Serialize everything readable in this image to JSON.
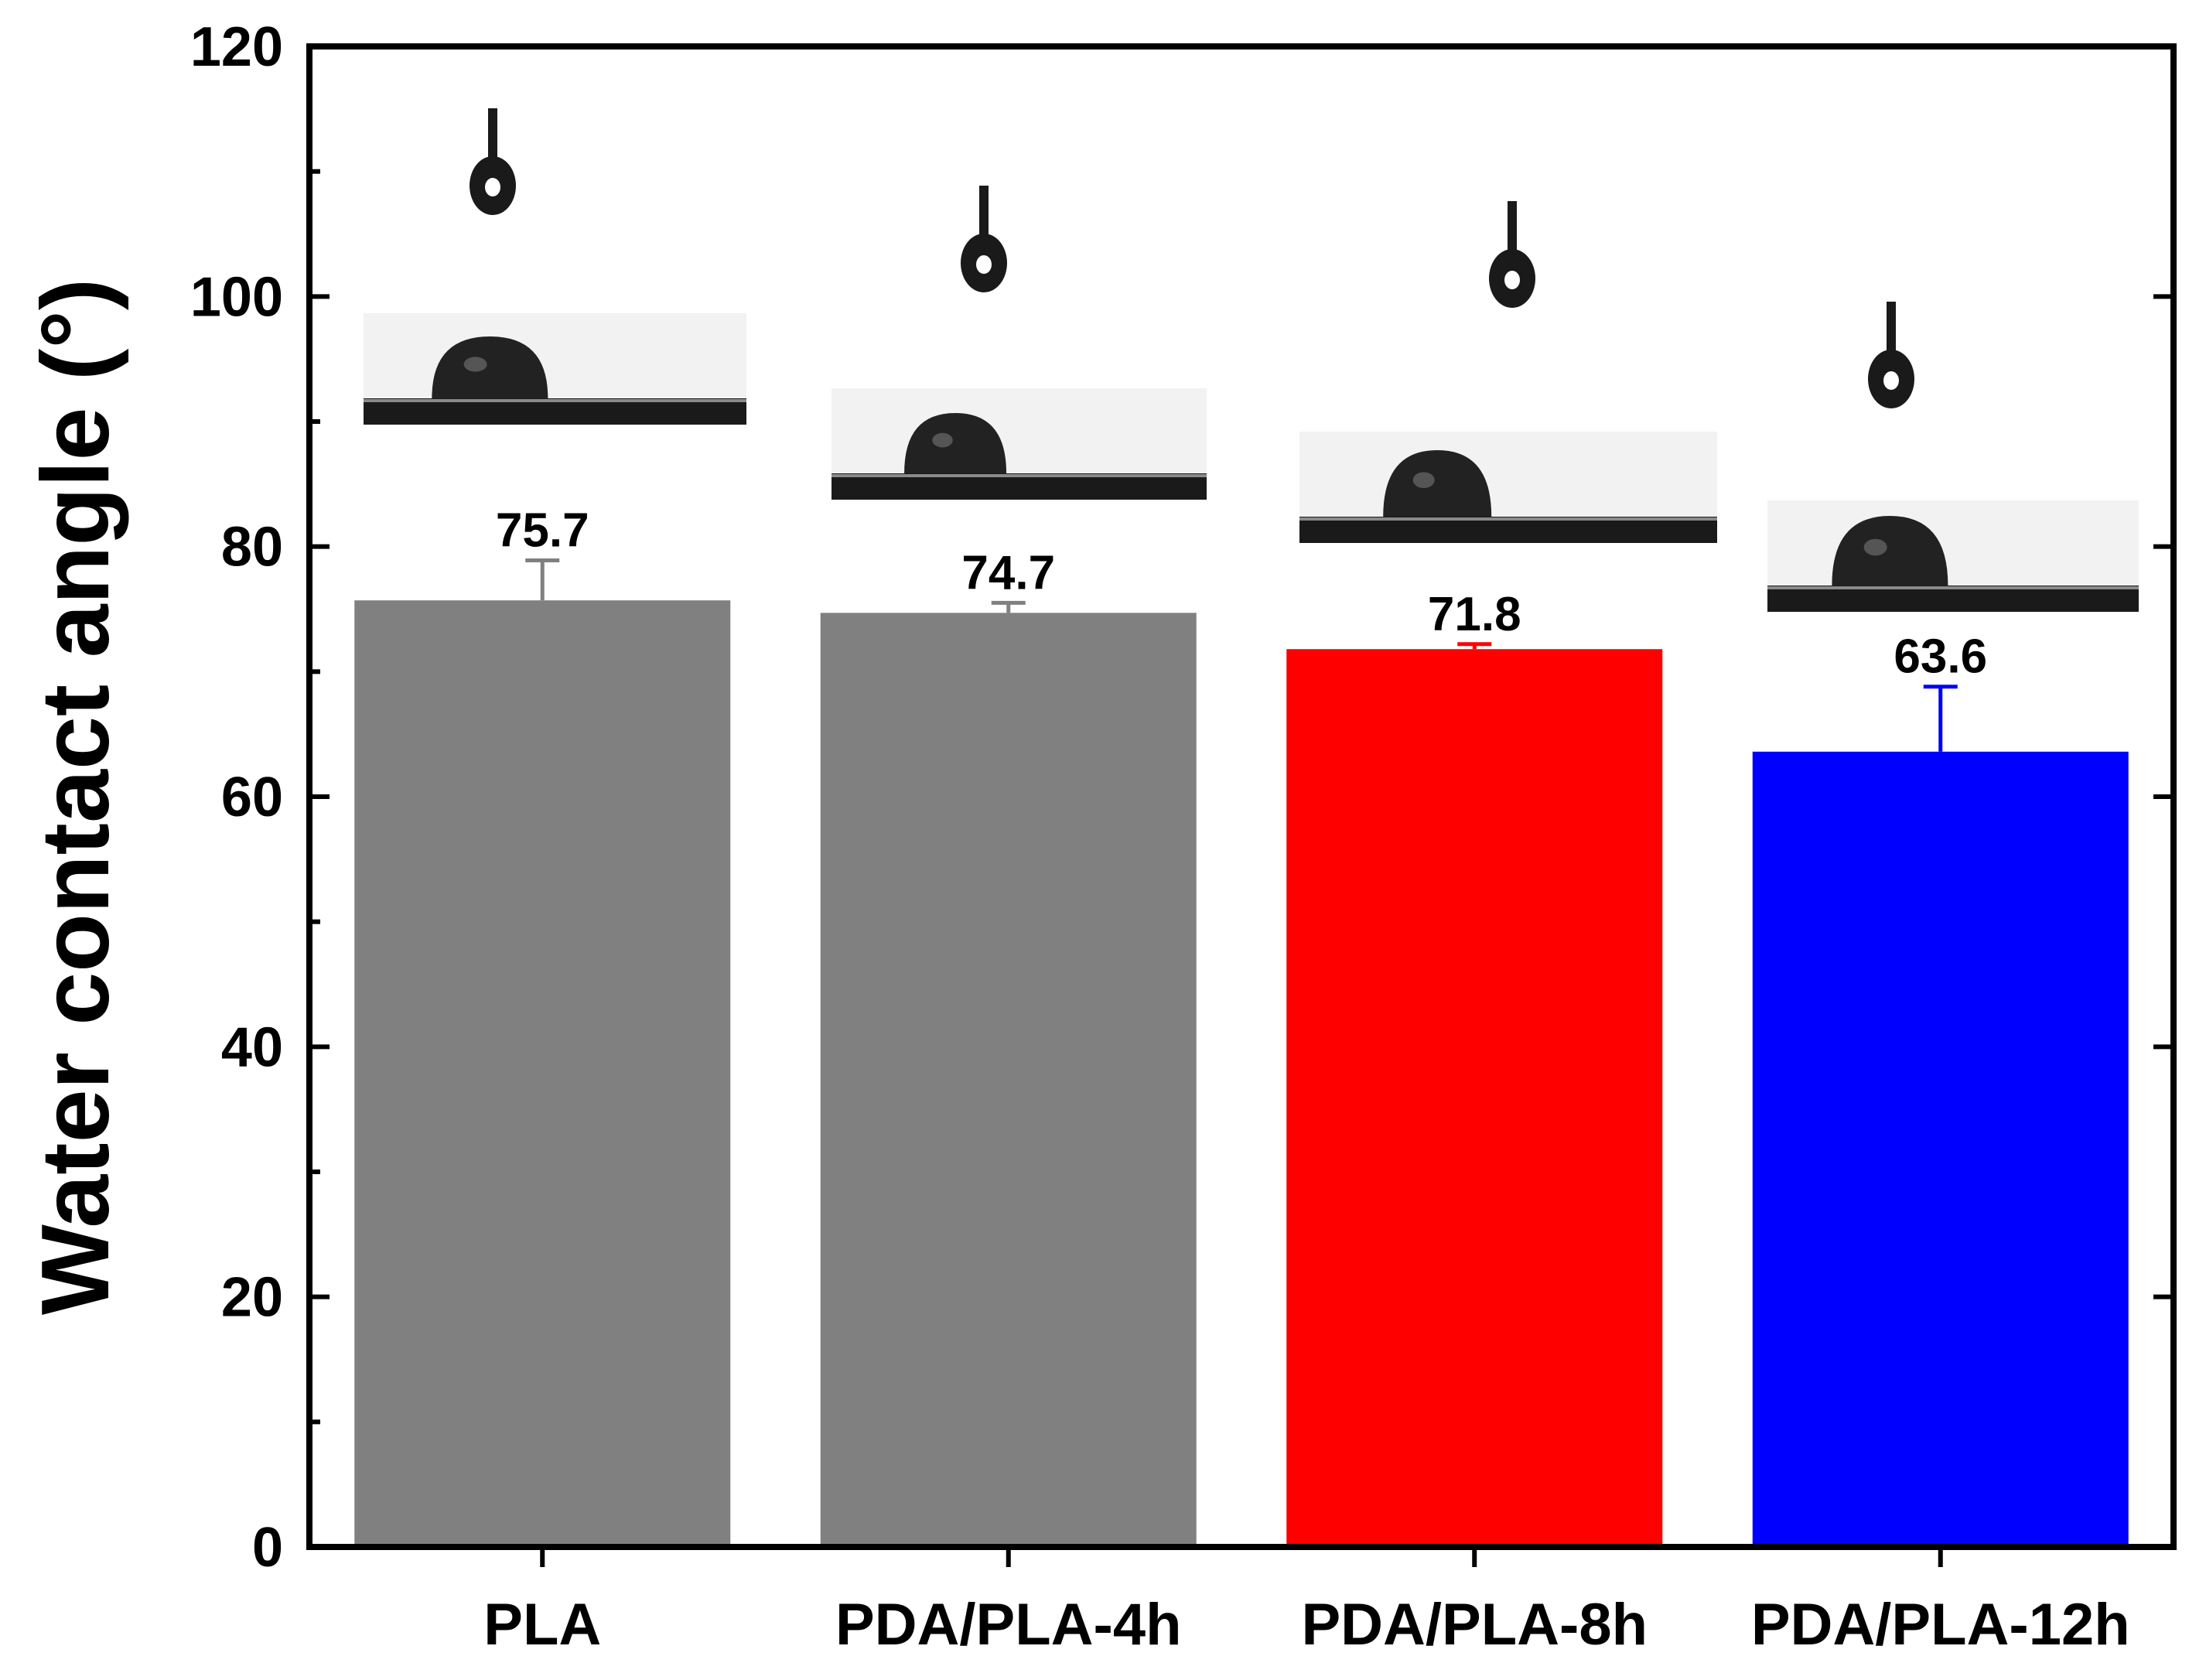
{
  "chart_data": {
    "type": "bar",
    "title": "",
    "xlabel": "",
    "ylabel": "Water contact angle (°)",
    "ylim": [
      0,
      120
    ],
    "yticks": [
      0,
      20,
      40,
      60,
      80,
      100,
      120
    ],
    "grid": false,
    "categories": [
      "PLA",
      "PDA/PLA-4h",
      "PDA/PLA-8h",
      "PDA/PLA-12h"
    ],
    "values": [
      75.7,
      74.7,
      71.8,
      63.6
    ],
    "value_labels": [
      "75.7",
      "74.7",
      "71.8",
      "63.6"
    ],
    "errors": [
      3.2,
      0.8,
      0.4,
      5.2
    ],
    "colors": [
      "#808080",
      "#808080",
      "#ff0000",
      "#0000ff"
    ],
    "insets": [
      "water-droplet-photo",
      "water-droplet-photo",
      "water-droplet-photo",
      "water-droplet-photo"
    ]
  }
}
